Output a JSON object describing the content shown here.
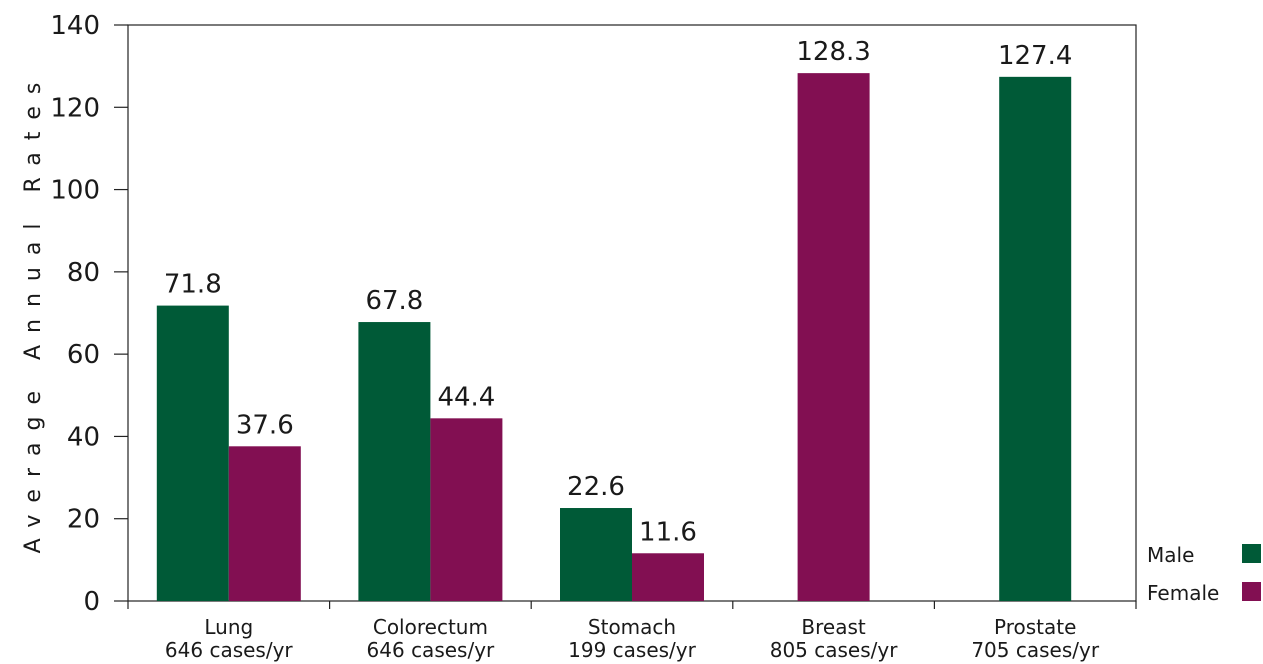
{
  "chart_data": {
    "type": "bar",
    "ylabel": "Average Annual Rates",
    "ylim": [
      0,
      140
    ],
    "yticks": [
      0,
      20,
      40,
      60,
      80,
      100,
      120,
      140
    ],
    "categories": [
      {
        "name": "Lung",
        "cases": "646 cases/yr"
      },
      {
        "name": "Colorectum",
        "cases": "646 cases/yr"
      },
      {
        "name": "Stomach",
        "cases": "199 cases/yr"
      },
      {
        "name": "Breast",
        "cases": "805 cases/yr"
      },
      {
        "name": "Prostate",
        "cases": "705 cases/yr"
      }
    ],
    "series": [
      {
        "name": "Male",
        "color": "#005a37",
        "values": [
          71.8,
          67.8,
          22.6,
          null,
          127.4
        ]
      },
      {
        "name": "Female",
        "color": "#820f52",
        "values": [
          37.6,
          44.4,
          11.6,
          128.3,
          null
        ]
      }
    ],
    "legend": "bottom-right"
  }
}
